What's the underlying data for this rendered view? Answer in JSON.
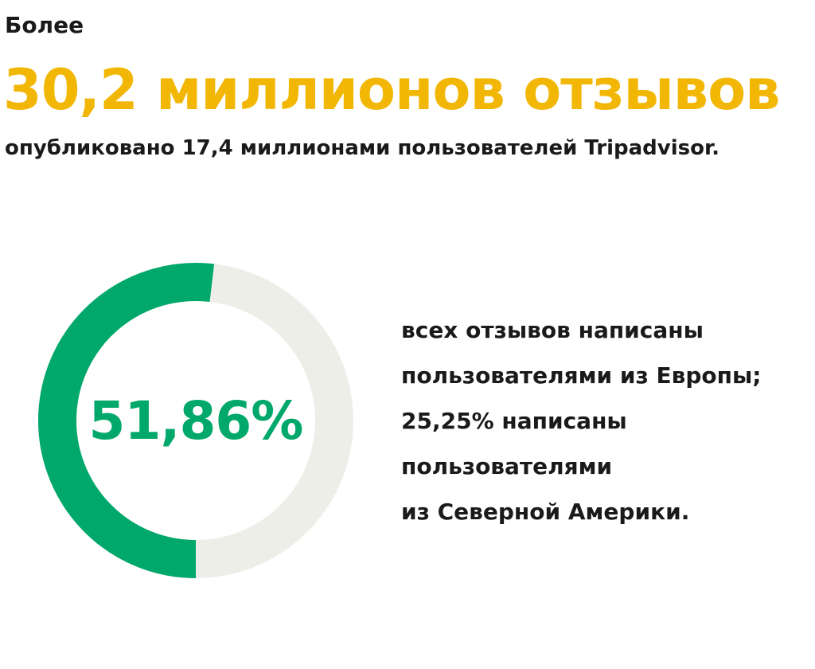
{
  "header": {
    "intro": "Более",
    "headline": "30,2 миллионов отзывов",
    "subline": "опубликовано 17,4 миллионами пользователей Tripadvisor."
  },
  "ring": {
    "value_label": "51,86%"
  },
  "description": {
    "lines": [
      "всех отзывов написаны",
      "пользователями из Европы;",
      "25,25% написаны",
      "пользователями",
      "из Северной Америки."
    ]
  },
  "colors": {
    "accent_yellow": "#f2b705",
    "accent_green": "#00a86b",
    "track_gray": "#eeeee9",
    "text_dark": "#1a1a1a"
  },
  "chart_data": {
    "type": "pie",
    "categories": [
      "51,86%",
      ""
    ],
    "values": [
      51.86,
      48.14
    ],
    "title": "",
    "colors": [
      "#00a86b",
      "#eeeee9"
    ]
  }
}
